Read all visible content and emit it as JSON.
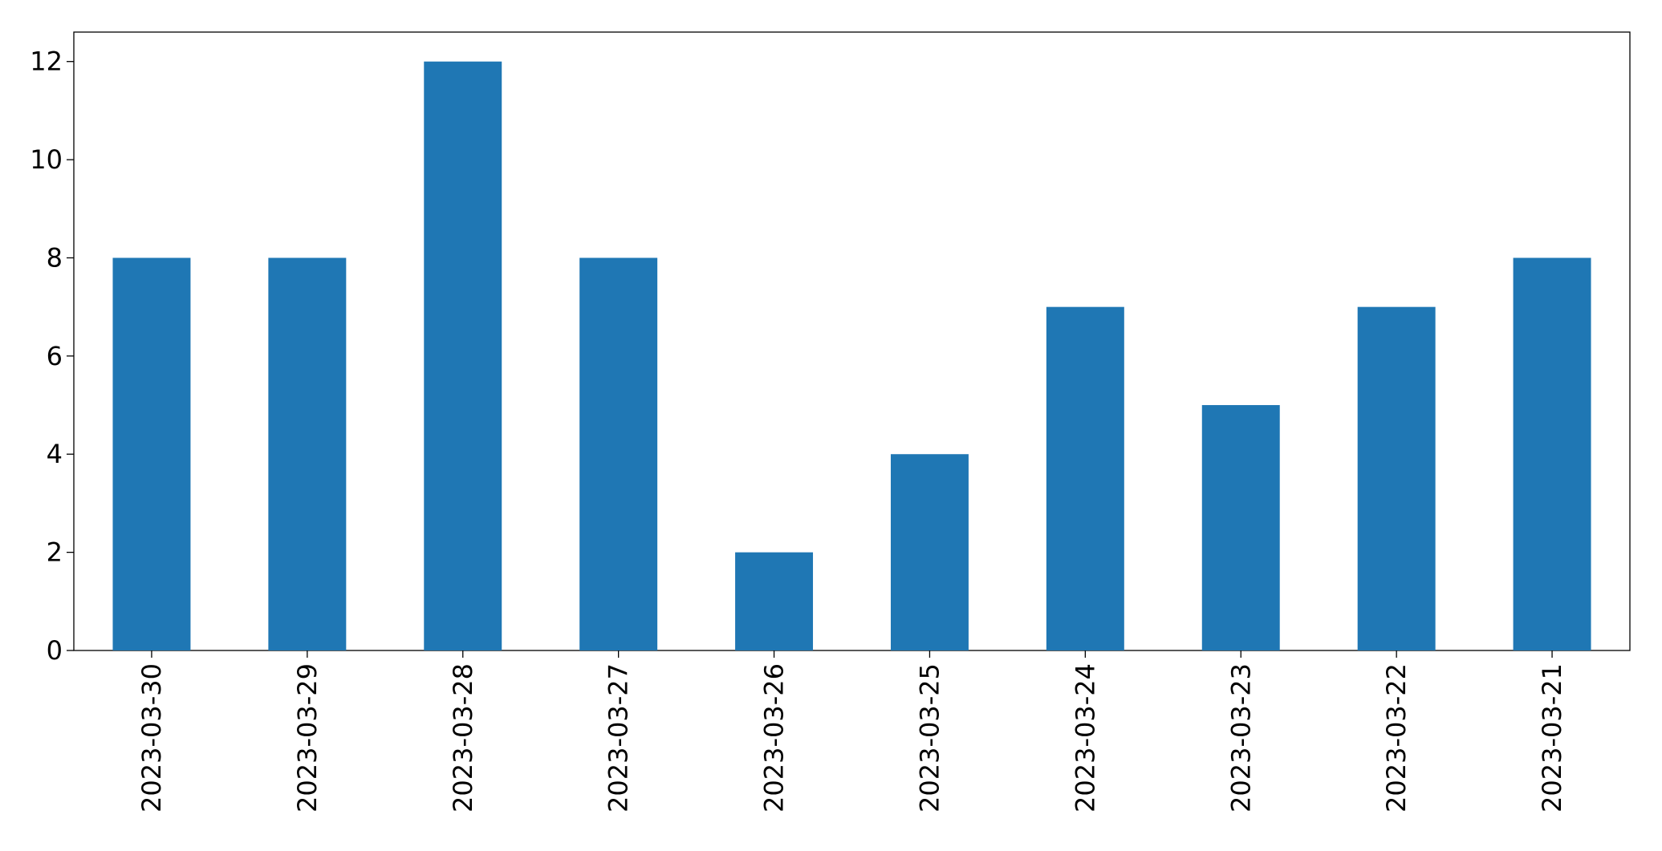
{
  "chart_data": {
    "type": "bar",
    "categories": [
      "2023-03-30",
      "2023-03-29",
      "2023-03-28",
      "2023-03-27",
      "2023-03-26",
      "2023-03-25",
      "2023-03-24",
      "2023-03-23",
      "2023-03-22",
      "2023-03-21"
    ],
    "values": [
      8,
      8,
      12,
      8,
      2,
      4,
      7,
      5,
      7,
      8
    ],
    "color": "#1f77b4",
    "ylim": [
      0,
      12.6
    ],
    "yticks": [
      0,
      2,
      4,
      6,
      8,
      10,
      12
    ],
    "grid": false
  }
}
